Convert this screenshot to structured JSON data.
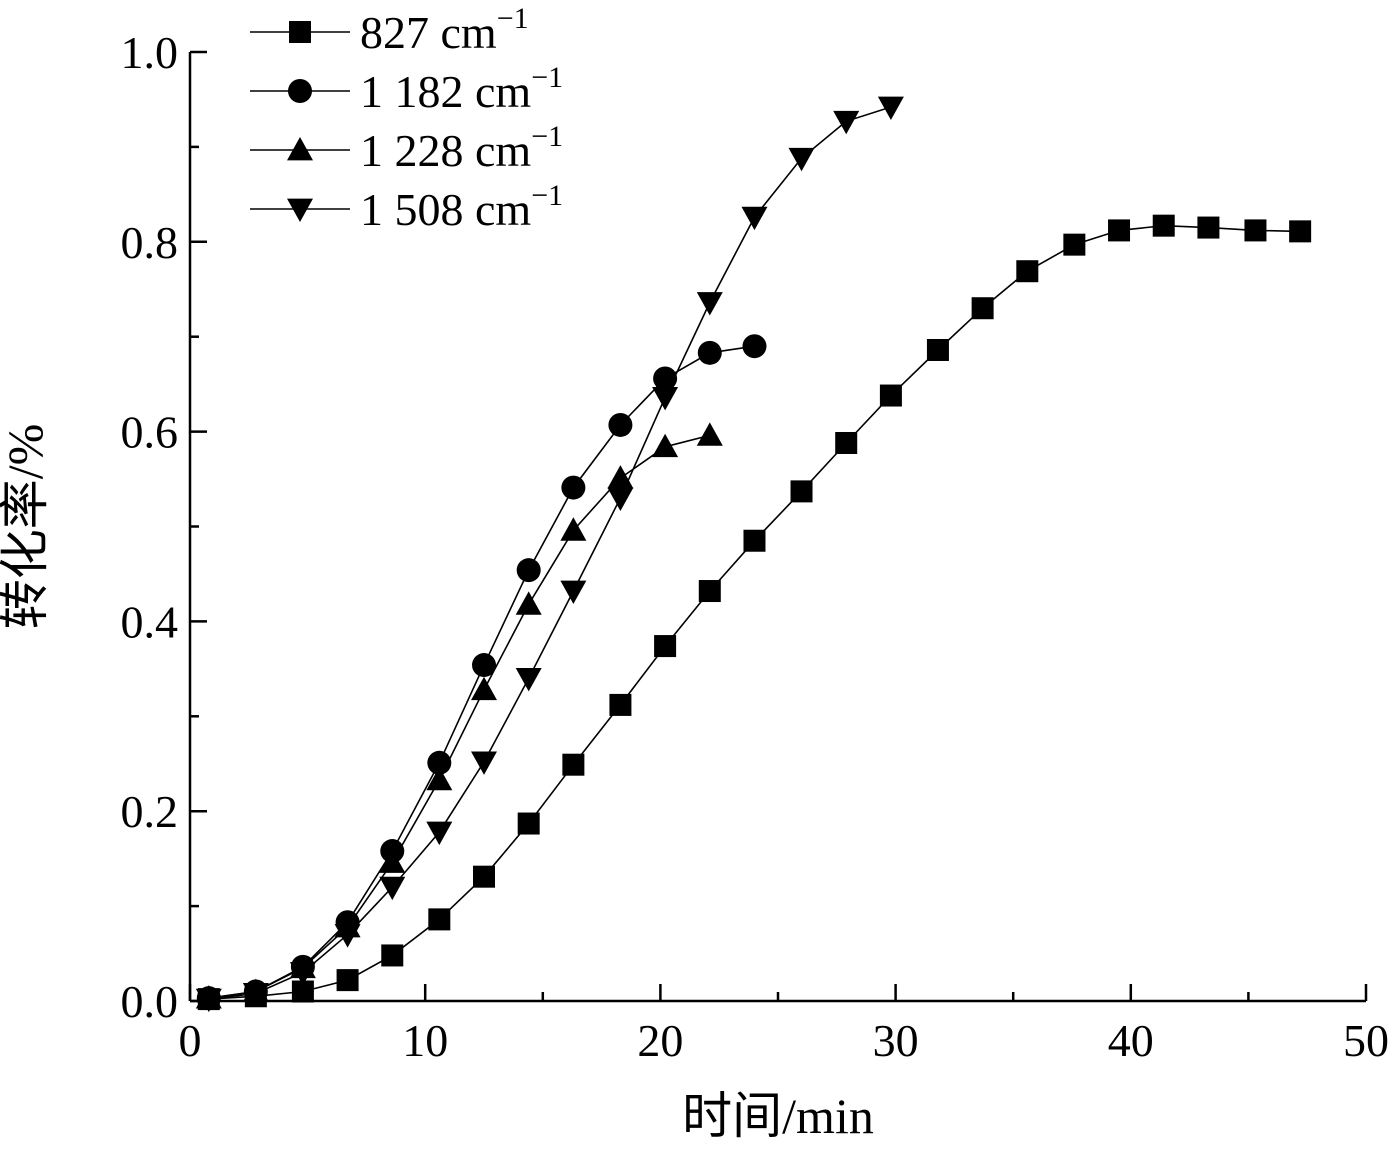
{
  "chart_data": {
    "type": "line",
    "xlabel": "时间/min",
    "ylabel": "转化率/%",
    "xlim": [
      0,
      50
    ],
    "ylim": [
      0.0,
      1.0
    ],
    "x_ticks": [
      0,
      10,
      20,
      30,
      40,
      50
    ],
    "x_tick_labels": [
      "0",
      "10",
      "20",
      "30",
      "40",
      "50"
    ],
    "y_ticks": [
      0.0,
      0.2,
      0.4,
      0.6,
      0.8,
      1.0
    ],
    "y_tick_labels": [
      "0.0",
      "0.2",
      "0.4",
      "0.6",
      "0.8",
      "1.0"
    ],
    "grid": false,
    "legend_position": "top-left",
    "series": [
      {
        "name": "827 cm⁻¹",
        "label_main": "827 cm",
        "label_sup": "−1",
        "marker": "square",
        "color": "#000000",
        "x": [
          0.8,
          2.8,
          4.8,
          6.7,
          8.6,
          10.6,
          12.5,
          14.4,
          16.3,
          18.3,
          20.2,
          22.1,
          24.0,
          26.0,
          27.9,
          29.8,
          31.8,
          33.7,
          35.6,
          37.6,
          39.5,
          41.4,
          43.3,
          45.3,
          47.2
        ],
        "y": [
          0.002,
          0.005,
          0.01,
          0.022,
          0.048,
          0.086,
          0.131,
          0.187,
          0.249,
          0.312,
          0.374,
          0.432,
          0.485,
          0.537,
          0.588,
          0.638,
          0.686,
          0.73,
          0.769,
          0.797,
          0.812,
          0.817,
          0.815,
          0.812,
          0.811
        ]
      },
      {
        "name": "1 182 cm⁻¹",
        "label_main": "1 182 cm",
        "label_sup": "−1",
        "marker": "circle",
        "color": "#000000",
        "x": [
          0.8,
          2.8,
          4.8,
          6.7,
          8.6,
          10.6,
          12.5,
          14.4,
          16.3,
          18.3,
          20.2,
          22.1,
          24.0
        ],
        "y": [
          0.003,
          0.01,
          0.036,
          0.083,
          0.158,
          0.251,
          0.354,
          0.454,
          0.541,
          0.607,
          0.656,
          0.683,
          0.69
        ]
      },
      {
        "name": "1 228 cm⁻¹",
        "label_main": "1 228 cm",
        "label_sup": "−1",
        "marker": "triangle-up",
        "color": "#000000",
        "x": [
          0.8,
          2.8,
          4.8,
          6.7,
          8.6,
          10.6,
          12.5,
          14.4,
          16.3,
          18.3,
          20.2,
          22.1
        ],
        "y": [
          0.003,
          0.01,
          0.035,
          0.078,
          0.146,
          0.233,
          0.328,
          0.418,
          0.496,
          0.551,
          0.584,
          0.596
        ]
      },
      {
        "name": "1 508 cm⁻¹",
        "label_main": "1 508 cm",
        "label_sup": "−1",
        "marker": "triangle-down",
        "color": "#000000",
        "x": [
          0.8,
          2.8,
          4.8,
          6.7,
          8.6,
          10.6,
          12.5,
          14.4,
          16.3,
          18.3,
          20.2,
          22.1,
          24.0,
          26.0,
          27.9,
          29.8
        ],
        "y": [
          0.002,
          0.008,
          0.03,
          0.07,
          0.12,
          0.178,
          0.252,
          0.34,
          0.432,
          0.53,
          0.636,
          0.736,
          0.826,
          0.888,
          0.927,
          0.942
        ]
      }
    ]
  }
}
